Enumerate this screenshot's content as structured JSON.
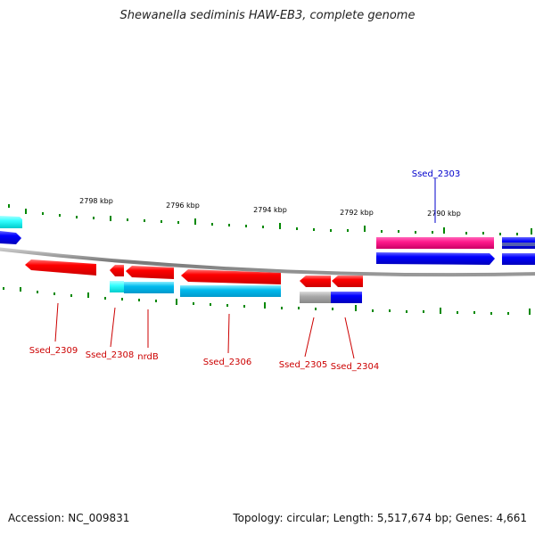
{
  "title": "Shewanella sediminis HAW-EB3, complete genome",
  "footer": {
    "accession": "Accession: NC_009831",
    "summary": "Topology: circular; Length: 5,517,674 bp; Genes: 4,661"
  },
  "scale_labels": [
    "2798 kbp",
    "2796 kbp",
    "2794 kbp",
    "2792 kbp",
    "2790 kbp"
  ],
  "gene_labels": [
    "Ssed_2303",
    "Ssed_2304",
    "Ssed_2305",
    "Ssed_2306",
    "nrdB",
    "Ssed_2308",
    "Ssed_2309"
  ],
  "colors": {
    "forward_gene": "#ff0000",
    "reverse_gene": "#0000ff",
    "forward_label": "#cc0000",
    "reverse_label": "#0000cc",
    "pink_gene": "#ff1a8c",
    "cyan_gene": "#00ccee",
    "light_cyan_gene": "#33ffff",
    "gray_gene": "#aaaaaa",
    "backbone": "#888888",
    "tick": "#008800"
  }
}
